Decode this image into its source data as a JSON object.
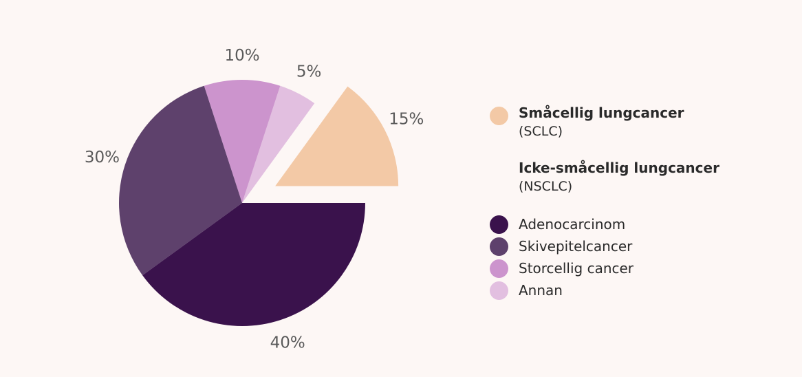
{
  "chart_data": {
    "type": "pie",
    "slices": [
      {
        "label": "Småcellig lungcancer (SCLC)",
        "value": 15,
        "label_text": "15%",
        "color": "#f3c9a6",
        "exploded": true
      },
      {
        "label": "Annan",
        "value": 5,
        "label_text": "5%",
        "color": "#e2bfe0"
      },
      {
        "label": "Storcellig cancer",
        "value": 10,
        "label_text": "10%",
        "color": "#cc94cd"
      },
      {
        "label": "Skivepitelcancer",
        "value": 30,
        "label_text": "30%",
        "color": "#5e416c"
      },
      {
        "label": "Adenocarcinom",
        "value": 40,
        "label_text": "40%",
        "color": "#3a124c"
      }
    ],
    "legend": {
      "groups": [
        {
          "title": "Småcellig lungcancer",
          "subtitle": "(SCLC)",
          "color": "#f3c9a6"
        },
        {
          "title": "Icke-småcellig lungcancer",
          "subtitle": "(NSCLC)"
        }
      ],
      "items": [
        {
          "label": "Adenocarcinom",
          "color": "#3a124c"
        },
        {
          "label": "Skivepitelcancer",
          "color": "#5e416c"
        },
        {
          "label": "Storcellig cancer",
          "color": "#cc94cd"
        },
        {
          "label": "Annan",
          "color": "#e2bfe0"
        }
      ]
    }
  }
}
